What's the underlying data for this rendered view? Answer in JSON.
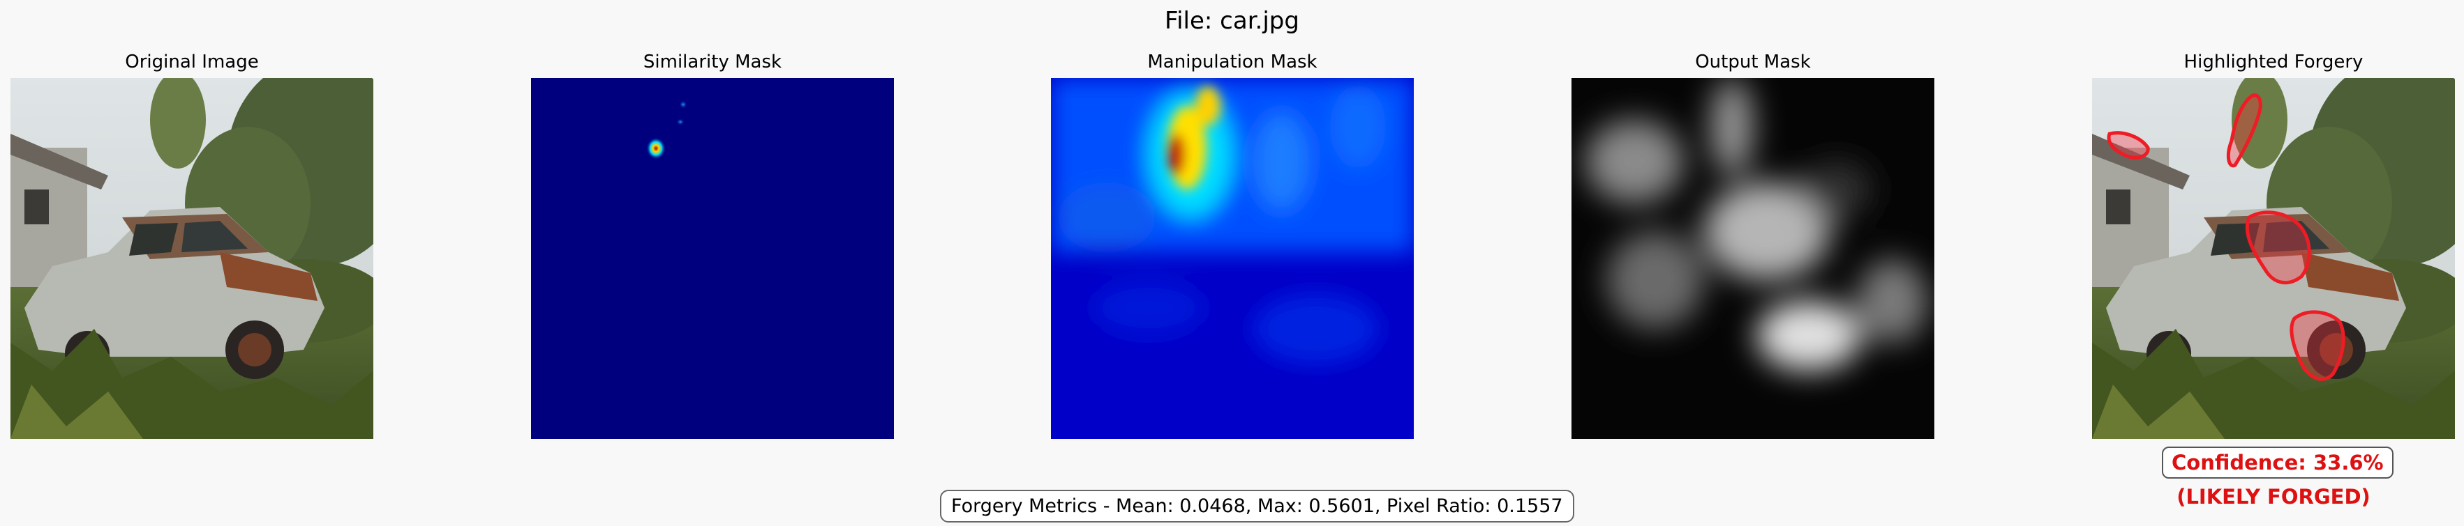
{
  "title": "File: car.jpg",
  "panels": [
    {
      "title": "Original Image"
    },
    {
      "title": "Similarity Mask"
    },
    {
      "title": "Manipulation Mask"
    },
    {
      "title": "Output Mask"
    },
    {
      "title": "Highlighted Forgery"
    }
  ],
  "confidence_text": "Confidence: 33.6%",
  "verdict_text": "(LIKELY FORGED)",
  "metrics_text": "Forgery Metrics - Mean: 0.0468, Max: 0.5601, Pixel Ratio: 0.1557",
  "colors": {
    "accent_red": "#dd1111",
    "mask_background": "#00007f"
  }
}
